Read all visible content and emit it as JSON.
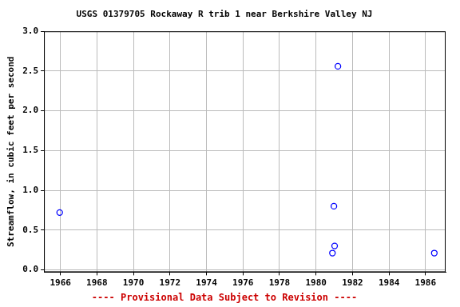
{
  "chart_data": {
    "type": "scatter",
    "title": "USGS 01379705 Rockaway R trib 1 near Berkshire Valley NJ",
    "annotation": "---- Provisional Data Subject to Revision ----",
    "y_label": "Streamflow, in cubic feet per second",
    "x": [
      1965.96,
      1980.9,
      1980.98,
      1981.02,
      1981.2,
      1986.48
    ],
    "values": [
      0.72,
      0.21,
      0.8,
      0.3,
      2.56,
      0.21
    ],
    "color": "#0000ff",
    "marker": "circle",
    "xlim": [
      1965.1,
      1987.1
    ],
    "xticks": [
      1966,
      1968,
      1970,
      1972,
      1974,
      1976,
      1978,
      1980,
      1982,
      1984,
      1986
    ],
    "ylim": [
      -0.03,
      3.0
    ],
    "yticks": [
      {
        "value": 0,
        "label": "0.0"
      },
      {
        "value": 0.5,
        "label": "0.5"
      },
      {
        "value": 1,
        "label": "1.0"
      },
      {
        "value": 1.5,
        "label": "1.5"
      },
      {
        "value": 2,
        "label": "2.0"
      },
      {
        "value": 2.5,
        "label": "2.5"
      },
      {
        "value": 3,
        "label": "3.0"
      }
    ],
    "grid": true
  }
}
